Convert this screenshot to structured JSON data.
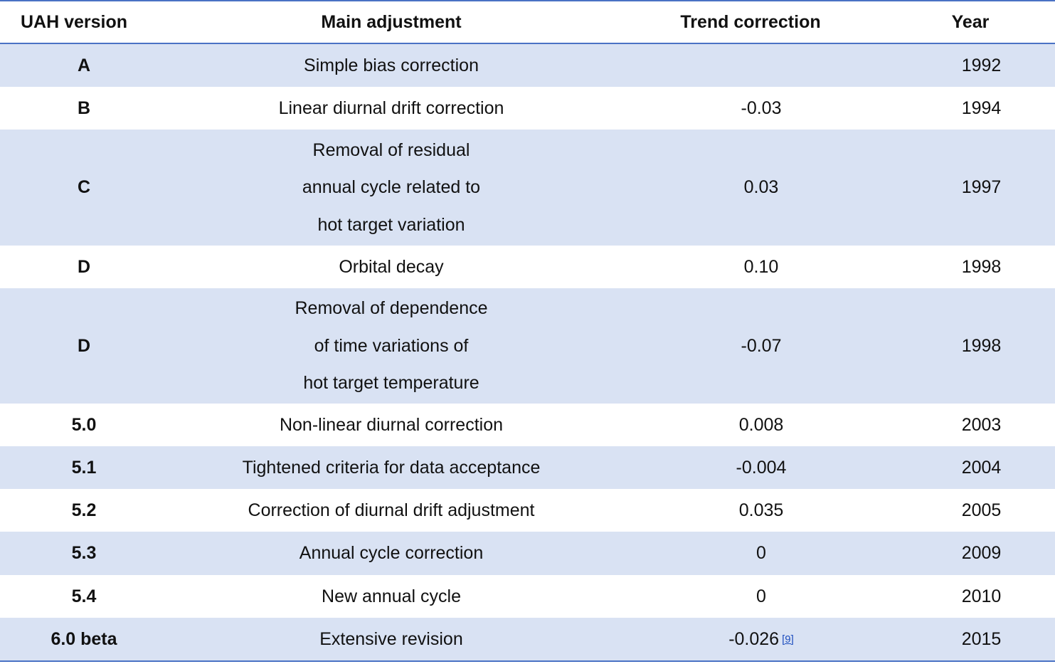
{
  "headers": {
    "version": "UAH version",
    "adjustment": "Main adjustment",
    "trend": "Trend correction",
    "year": "Year"
  },
  "rows": [
    {
      "version": "A",
      "adjustment": [
        "Simple bias correction"
      ],
      "trend": "",
      "year": "1992"
    },
    {
      "version": "B",
      "adjustment": [
        "Linear diurnal drift correction"
      ],
      "trend": "-0.03",
      "year": "1994"
    },
    {
      "version": "C",
      "adjustment": [
        "Removal of residual",
        "annual cycle related to",
        "hot target variation"
      ],
      "trend": "0.03",
      "year": "1997"
    },
    {
      "version": "D",
      "adjustment": [
        "Orbital decay"
      ],
      "trend": "0.10",
      "year": "1998"
    },
    {
      "version": "D",
      "adjustment": [
        "Removal of dependence",
        "of time variations of",
        "hot target temperature"
      ],
      "trend": "-0.07",
      "year": "1998"
    },
    {
      "version": "5.0",
      "adjustment": [
        "Non-linear diurnal correction"
      ],
      "trend": "0.008",
      "year": "2003"
    },
    {
      "version": "5.1",
      "adjustment": [
        "Tightened criteria for data acceptance"
      ],
      "trend": "-0.004",
      "year": "2004"
    },
    {
      "version": "5.2",
      "adjustment": [
        "Correction of diurnal drift adjustment"
      ],
      "trend": "0.035",
      "year": "2005"
    },
    {
      "version": "5.3",
      "adjustment": [
        "Annual cycle correction"
      ],
      "trend": "0",
      "year": "2009"
    },
    {
      "version": "5.4",
      "adjustment": [
        "New annual cycle"
      ],
      "trend": "0",
      "year": "2010"
    },
    {
      "version": "6.0 beta",
      "adjustment": [
        "Extensive revision"
      ],
      "trend": "-0.026",
      "trend_ref": "[9]",
      "year": "2015"
    }
  ],
  "colors": {
    "rule": "#4a72c4",
    "stripe": "#d9e2f3",
    "link": "#1f4fbf"
  }
}
